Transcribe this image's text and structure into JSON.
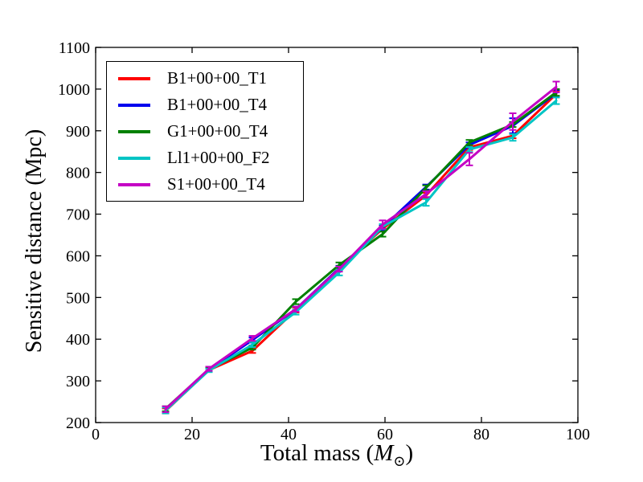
{
  "figure": {
    "background": "#ffffff",
    "frame_color": "#000000",
    "tick_color": "#000000"
  },
  "chart_data": {
    "type": "line",
    "title": "",
    "ylabel": "Sensitive distance (Mpc)",
    "xlabel_parts": {
      "prefix": "Total mass (",
      "symbol": "M",
      "subscript": "⊙",
      "suffix": ")"
    },
    "xlim": [
      0,
      100
    ],
    "ylim": [
      200,
      1100
    ],
    "xticks": [
      0,
      20,
      40,
      60,
      80,
      100
    ],
    "yticks": [
      200,
      300,
      400,
      500,
      600,
      700,
      800,
      900,
      1000,
      1100
    ],
    "grid": false,
    "legend_position": "upper-left",
    "x": [
      14.5,
      23.5,
      32.5,
      41.5,
      50.5,
      59.5,
      68.5,
      77.5,
      86.5,
      95.5
    ],
    "series": [
      {
        "name": "B1+00+00_T1",
        "color": "#ff0000",
        "values": [
          228,
          326,
          372,
          470,
          570,
          665,
          745,
          860,
          888,
          988
        ],
        "errors": [
          6,
          4,
          5,
          6,
          6,
          5,
          6,
          6,
          6,
          8
        ]
      },
      {
        "name": "B1+00+00_T4",
        "color": "#0000ee",
        "values": [
          231,
          327,
          398,
          472,
          570,
          668,
          765,
          866,
          912,
          990
        ],
        "errors": [
          6,
          4,
          6,
          6,
          6,
          6,
          6,
          6,
          18,
          8
        ]
      },
      {
        "name": "G1+00+00_T4",
        "color": "#008000",
        "values": [
          233,
          328,
          380,
          490,
          578,
          652,
          763,
          872,
          915,
          992
        ],
        "errors": [
          6,
          4,
          5,
          6,
          6,
          6,
          6,
          6,
          6,
          8
        ]
      },
      {
        "name": "Ll1+00+00_F2",
        "color": "#00c4c4",
        "values": [
          229,
          325,
          387,
          465,
          560,
          670,
          728,
          855,
          884,
          972
        ],
        "errors": [
          7,
          4,
          6,
          6,
          7,
          6,
          8,
          6,
          8,
          8
        ]
      },
      {
        "name": "S1+00+00_T4",
        "color": "#c400c4",
        "values": [
          232,
          329,
          402,
          472,
          568,
          675,
          748,
          832,
          922,
          1005
        ],
        "errors": [
          7,
          5,
          6,
          6,
          6,
          10,
          7,
          15,
          20,
          13
        ]
      }
    ]
  }
}
